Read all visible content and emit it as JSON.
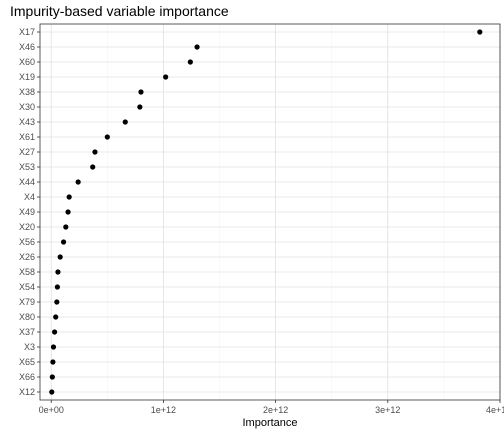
{
  "chart_data": {
    "type": "scatter",
    "title": "Impurity-based variable importance",
    "xlabel": "Importance",
    "ylabel": "",
    "xlim": [
      -100000000000.0,
      4000000000000.0
    ],
    "xticks": [
      0,
      1000000000000.0,
      2000000000000.0,
      3000000000000.0,
      4000000000000.0
    ],
    "xtick_labels": [
      "0e+00",
      "1e+12",
      "2e+12",
      "3e+12",
      "4e+12"
    ],
    "grid": true,
    "point_color": "#000000",
    "points": [
      {
        "variable": "X17",
        "importance": 3820000000000.0
      },
      {
        "variable": "X46",
        "importance": 1300000000000.0
      },
      {
        "variable": "X60",
        "importance": 1240000000000.0
      },
      {
        "variable": "X19",
        "importance": 1020000000000.0
      },
      {
        "variable": "X38",
        "importance": 800000000000.0
      },
      {
        "variable": "X30",
        "importance": 790000000000.0
      },
      {
        "variable": "X43",
        "importance": 660000000000.0
      },
      {
        "variable": "X61",
        "importance": 500000000000.0
      },
      {
        "variable": "X27",
        "importance": 390000000000.0
      },
      {
        "variable": "X53",
        "importance": 370000000000.0
      },
      {
        "variable": "X44",
        "importance": 240000000000.0
      },
      {
        "variable": "X4",
        "importance": 160000000000.0
      },
      {
        "variable": "X49",
        "importance": 150000000000.0
      },
      {
        "variable": "X20",
        "importance": 130000000000.0
      },
      {
        "variable": "X56",
        "importance": 110000000000.0
      },
      {
        "variable": "X26",
        "importance": 80000000000.0
      },
      {
        "variable": "X58",
        "importance": 60000000000.0
      },
      {
        "variable": "X54",
        "importance": 55000000000.0
      },
      {
        "variable": "X79",
        "importance": 50000000000.0
      },
      {
        "variable": "X80",
        "importance": 40000000000.0
      },
      {
        "variable": "X37",
        "importance": 30000000000.0
      },
      {
        "variable": "X3",
        "importance": 20000000000.0
      },
      {
        "variable": "X65",
        "importance": 15000000000.0
      },
      {
        "variable": "X66",
        "importance": 10000000000.0
      },
      {
        "variable": "X12",
        "importance": 5000000000.0
      }
    ]
  }
}
